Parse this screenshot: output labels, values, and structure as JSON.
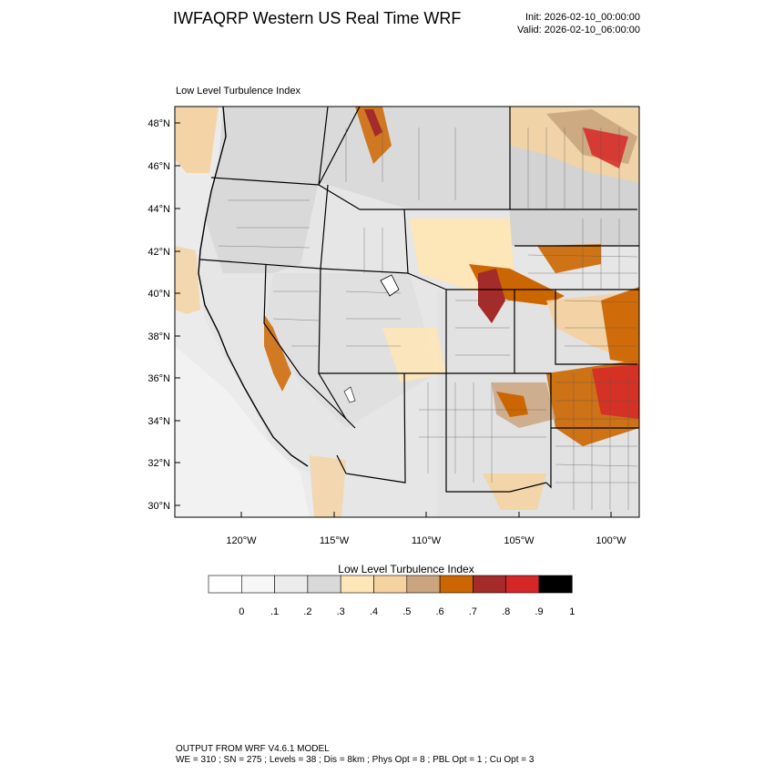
{
  "header": {
    "title": "IWFAQRP Western US Real Time WRF",
    "init": "Init: 2026-02-10_00:00:00",
    "valid": "Valid: 2026-02-10_06:00:00"
  },
  "plot": {
    "subtitle": "Low Level Turbulence Index",
    "lat_labels": [
      "48°N",
      "46°N",
      "44°N",
      "42°N",
      "40°N",
      "38°N",
      "36°N",
      "34°N",
      "32°N",
      "30°N"
    ],
    "lon_labels": [
      "120°W",
      "115°W",
      "110°W",
      "105°W",
      "100°W"
    ]
  },
  "colorbar": {
    "title": "Low Level Turbulence Index",
    "ticks": [
      "0",
      ".1",
      ".2",
      ".3",
      ".4",
      ".5",
      ".6",
      ".7",
      ".8",
      ".9",
      "1"
    ],
    "colors": [
      "#ffffff",
      "#f7f7f7",
      "#ececec",
      "#d9d9d9",
      "#fde6b8",
      "#f5d29f",
      "#caa57f",
      "#cc6600",
      "#a52a2a",
      "#d62728",
      "#000000"
    ]
  },
  "footer": {
    "line1": "OUTPUT FROM WRF V4.6.1 MODEL",
    "line2": "WE = 310 ; SN = 275 ; Levels = 38 ; Dis = 8km ; Phys Opt = 8 ; PBL Opt = 1 ; Cu Opt = 3"
  }
}
